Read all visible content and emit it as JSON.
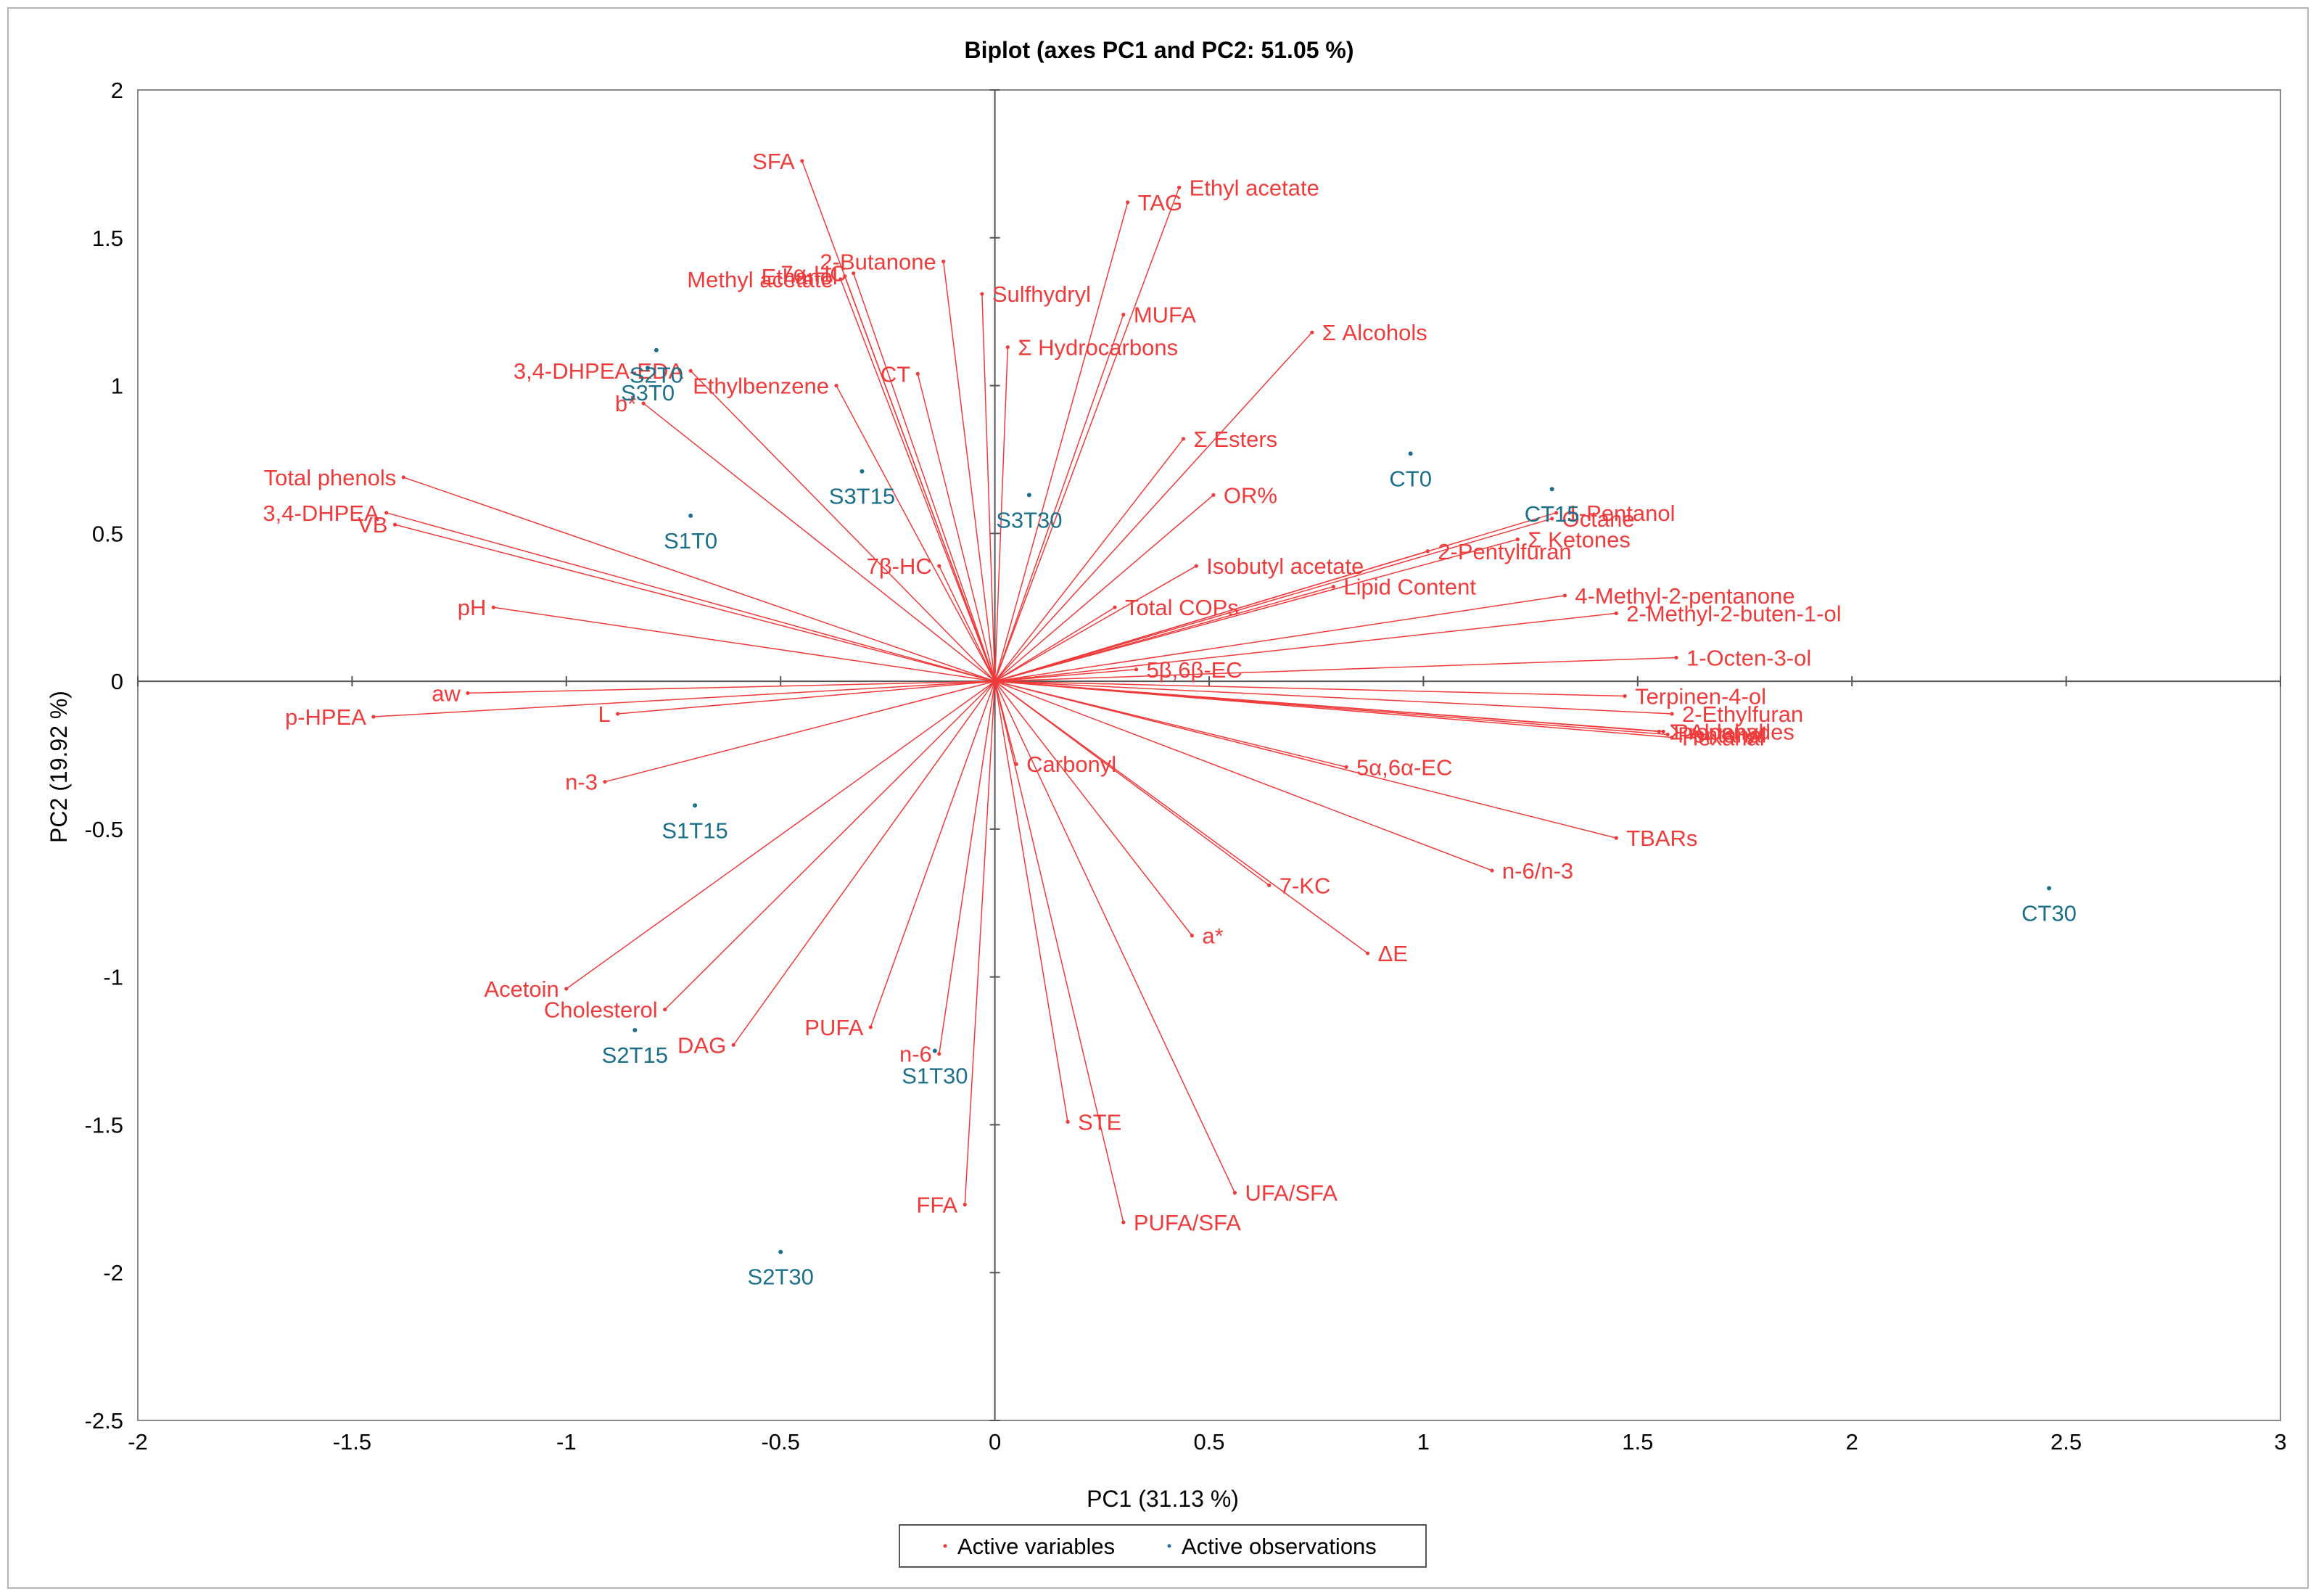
{
  "chart_data": {
    "type": "scatter",
    "subtype": "biplot",
    "title": "Biplot (axes PC1 and PC2: 51.05 %)",
    "xlabel": "PC1 (31.13 %)",
    "ylabel": "PC2 (19.92 %)",
    "xlim": [
      -2,
      3
    ],
    "ylim": [
      -2.5,
      2
    ],
    "xticks": [
      -2,
      -1.5,
      -1,
      -0.5,
      0,
      0.5,
      1,
      1.5,
      2,
      2.5,
      3
    ],
    "yticks": [
      -2.5,
      -2,
      -1.5,
      -1,
      -0.5,
      0,
      0.5,
      1,
      1.5,
      2
    ],
    "xtick_labels": [
      "-2",
      "-1.5",
      "-1",
      "-0.5",
      "0",
      "0.5",
      "1",
      "1.5",
      "2",
      "2.5",
      "3"
    ],
    "ytick_labels": [
      "-2.5",
      "-2",
      "-1.5",
      "-1",
      "-0.5",
      "0",
      "0.5",
      "1",
      "1.5",
      "2"
    ],
    "colors": {
      "variables": "#ef3b3b",
      "observations": "#1c6f8a"
    },
    "legend": {
      "position": "bottom-center",
      "entries": [
        "Active variables",
        "Active observations"
      ]
    },
    "variables": [
      {
        "name": "SFA",
        "x": -0.45,
        "y": 1.76
      },
      {
        "name": "Ethanol",
        "x": -0.35,
        "y": 1.37
      },
      {
        "name": "7α-HC",
        "x": -0.33,
        "y": 1.38
      },
      {
        "name": "2-Butanone",
        "x": -0.12,
        "y": 1.42
      },
      {
        "name": "Methyl acetate",
        "x": -0.36,
        "y": 1.36
      },
      {
        "name": "Sulfhydryl",
        "x": -0.03,
        "y": 1.31
      },
      {
        "name": "TAG",
        "x": 0.31,
        "y": 1.62
      },
      {
        "name": "Ethyl acetate",
        "x": 0.43,
        "y": 1.67
      },
      {
        "name": "MUFA",
        "x": 0.3,
        "y": 1.24
      },
      {
        "name": "Σ Hydrocarbons",
        "x": 0.03,
        "y": 1.13
      },
      {
        "name": "Σ Alcohols",
        "x": 0.74,
        "y": 1.18
      },
      {
        "name": "3,4-DHPEA-EDA",
        "x": -0.71,
        "y": 1.05
      },
      {
        "name": "CT",
        "x": -0.18,
        "y": 1.04
      },
      {
        "name": "Ethylbenzene",
        "x": -0.37,
        "y": 1.0
      },
      {
        "name": "b*",
        "x": -0.82,
        "y": 0.94
      },
      {
        "name": "Σ Esters",
        "x": 0.44,
        "y": 0.82
      },
      {
        "name": "OR%",
        "x": 0.51,
        "y": 0.63
      },
      {
        "name": "Total phenols",
        "x": -1.38,
        "y": 0.69
      },
      {
        "name": "3,4-DHPEA",
        "x": -1.42,
        "y": 0.57
      },
      {
        "name": "VB",
        "x": -1.4,
        "y": 0.53
      },
      {
        "name": "pH",
        "x": -1.17,
        "y": 0.25
      },
      {
        "name": "7β-HC",
        "x": -0.13,
        "y": 0.39
      },
      {
        "name": "Isobutyl acetate",
        "x": 0.47,
        "y": 0.39
      },
      {
        "name": "Total COPs",
        "x": 0.28,
        "y": 0.25
      },
      {
        "name": "1-Pentanol",
        "x": 1.31,
        "y": 0.57
      },
      {
        "name": "Octane",
        "x": 1.3,
        "y": 0.55
      },
      {
        "name": "Σ Ketones",
        "x": 1.22,
        "y": 0.48
      },
      {
        "name": "2-Pentylfuran",
        "x": 1.01,
        "y": 0.44
      },
      {
        "name": "Lipid Content",
        "x": 0.79,
        "y": 0.32
      },
      {
        "name": "4-Methyl-2-pentanone",
        "x": 1.33,
        "y": 0.29
      },
      {
        "name": "2-Methyl-2-buten-1-ol",
        "x": 1.45,
        "y": 0.23
      },
      {
        "name": "1-Octen-3-ol",
        "x": 1.59,
        "y": 0.08
      },
      {
        "name": "5β,6β-EC",
        "x": 0.33,
        "y": 0.04
      },
      {
        "name": "aw",
        "x": -1.23,
        "y": -0.04
      },
      {
        "name": "L",
        "x": -0.88,
        "y": -0.11
      },
      {
        "name": "p-HPEA",
        "x": -1.45,
        "y": -0.12
      },
      {
        "name": "Terpinen-4-ol",
        "x": 1.47,
        "y": -0.05
      },
      {
        "name": "2-Ethylfuran",
        "x": 1.58,
        "y": -0.11
      },
      {
        "name": "Propanal",
        "x": 1.56,
        "y": -0.17
      },
      {
        "name": "Hexanal",
        "x": 1.58,
        "y": -0.19
      },
      {
        "name": "Σ Aldehydes",
        "x": 1.55,
        "y": -0.17
      },
      {
        "name": "Pentanal",
        "x": 1.57,
        "y": -0.18
      },
      {
        "name": "5α,6α-EC",
        "x": 0.82,
        "y": -0.29
      },
      {
        "name": "Carbonyl",
        "x": 0.05,
        "y": -0.28
      },
      {
        "name": "n-3",
        "x": -0.91,
        "y": -0.34
      },
      {
        "name": "TBARs",
        "x": 1.45,
        "y": -0.53
      },
      {
        "name": "n-6/n-3",
        "x": 1.16,
        "y": -0.64
      },
      {
        "name": "7-KC",
        "x": 0.64,
        "y": -0.69
      },
      {
        "name": "a*",
        "x": 0.46,
        "y": -0.86
      },
      {
        "name": "ΔE",
        "x": 0.87,
        "y": -0.92
      },
      {
        "name": "Acetoin",
        "x": -1.0,
        "y": -1.04
      },
      {
        "name": "Cholesterol",
        "x": -0.77,
        "y": -1.11
      },
      {
        "name": "DAG",
        "x": -0.61,
        "y": -1.23
      },
      {
        "name": "PUFA",
        "x": -0.29,
        "y": -1.17
      },
      {
        "name": "n-6",
        "x": -0.13,
        "y": -1.26
      },
      {
        "name": "STE",
        "x": 0.17,
        "y": -1.49
      },
      {
        "name": "UFA/SFA",
        "x": 0.56,
        "y": -1.73
      },
      {
        "name": "PUFA/SFA",
        "x": 0.3,
        "y": -1.83
      },
      {
        "name": "FFA",
        "x": -0.07,
        "y": -1.77
      }
    ],
    "observations": [
      {
        "name": "S2T0",
        "x": -0.79,
        "y": 1.12
      },
      {
        "name": "S3T0",
        "x": -0.81,
        "y": 1.06
      },
      {
        "name": "S1T0",
        "x": -0.71,
        "y": 0.56
      },
      {
        "name": "S3T15",
        "x": -0.31,
        "y": 0.71
      },
      {
        "name": "S3T30",
        "x": 0.08,
        "y": 0.63
      },
      {
        "name": "CT0",
        "x": 0.97,
        "y": 0.77
      },
      {
        "name": "CT15",
        "x": 1.3,
        "y": 0.65
      },
      {
        "name": "S1T15",
        "x": -0.7,
        "y": -0.42
      },
      {
        "name": "CT30",
        "x": 2.46,
        "y": -0.7
      },
      {
        "name": "S2T15",
        "x": -0.84,
        "y": -1.18
      },
      {
        "name": "S1T30",
        "x": -0.14,
        "y": -1.25
      },
      {
        "name": "S2T30",
        "x": -0.5,
        "y": -1.93
      }
    ]
  }
}
